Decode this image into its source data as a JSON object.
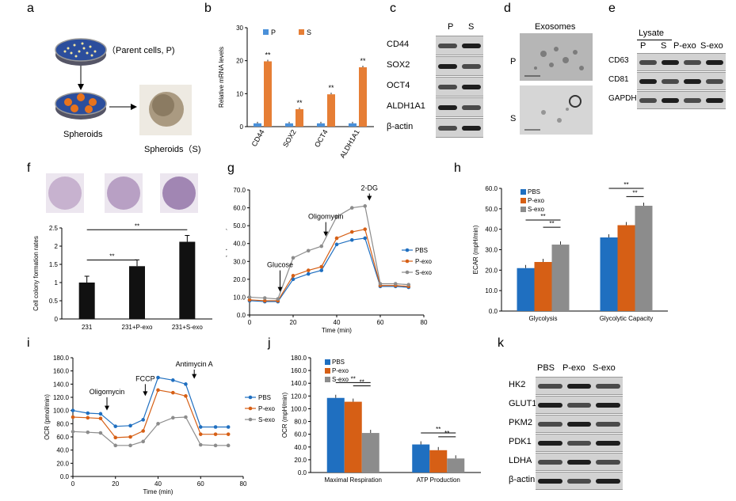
{
  "panels": {
    "a": {
      "label": "a",
      "parent_text": "（Parent cells, P)",
      "spheroids_text": "Spheroids",
      "spheroids_s_text": "Spheroids（S)"
    },
    "b": {
      "label": "b"
    },
    "c": {
      "label": "c",
      "cols": [
        "P",
        "S"
      ],
      "rows": [
        "CD44",
        "SOX2",
        "OCT4",
        "ALDH1A1",
        "β-actin"
      ]
    },
    "d": {
      "label": "d",
      "title": "Exosomes",
      "rows": [
        "P",
        "S"
      ]
    },
    "e": {
      "label": "e",
      "lysate": "Lysate",
      "cols": [
        "P",
        "S",
        "P-exo",
        "S-exo"
      ],
      "rows": [
        "CD63",
        "CD81",
        "GAPDH"
      ]
    },
    "f": {
      "label": "f"
    },
    "g": {
      "label": "g",
      "annotations": [
        "Glucose",
        "Oligomycin",
        "2-DG"
      ]
    },
    "h": {
      "label": "h"
    },
    "i": {
      "label": "i",
      "annotations": [
        "Oligomycin",
        "FCCP",
        "Antimycin A"
      ]
    },
    "j": {
      "label": "j"
    },
    "k": {
      "label": "k",
      "cols": [
        "PBS",
        "P-exo",
        "S-exo"
      ],
      "rows": [
        "HK2",
        "GLUT1",
        "PKM2",
        "PDK1",
        "LDHA",
        "β-actin"
      ]
    }
  },
  "colors": {
    "P": "#4a90d9",
    "S": "#e67e35",
    "PBS": "#1f6fc0",
    "Pexo": "#d65f15",
    "Sexo": "#8c8c8c",
    "black": "#111111"
  },
  "chart_data": [
    {
      "id": "b",
      "type": "bar",
      "categories": [
        "CD44",
        "SOX2",
        "OCT4",
        "ALDH1A1"
      ],
      "series": [
        {
          "name": "P",
          "values": [
            1,
            1,
            1,
            1
          ]
        },
        {
          "name": "S",
          "values": [
            19.8,
            5.3,
            9.8,
            18
          ]
        }
      ],
      "ylabel": "Relative mRNA levels",
      "ylim": [
        0,
        30
      ],
      "yticks": [
        "0",
        "10",
        "20",
        "30"
      ],
      "annotations": [
        "**",
        "**",
        "**",
        "**"
      ],
      "legend": "top"
    },
    {
      "id": "f",
      "type": "bar",
      "categories": [
        "231",
        "231+P-exo",
        "231+S-exo"
      ],
      "series": [
        {
          "values": [
            1.0,
            1.45,
            2.12
          ]
        }
      ],
      "ylabel": "Cell colony formation rates",
      "ylim": [
        0,
        2.5
      ],
      "yticks": [
        "0",
        "0.5",
        "1",
        "1.5",
        "2",
        "2.5"
      ],
      "annotations": [
        "**",
        "**"
      ]
    },
    {
      "id": "g",
      "type": "line",
      "x": [
        0,
        7,
        13,
        20,
        27,
        33,
        40,
        47,
        53,
        60,
        67,
        73
      ],
      "series": [
        {
          "name": "PBS",
          "values": [
            8,
            7.5,
            7.5,
            20,
            23,
            25,
            39.5,
            42,
            43,
            16,
            16,
            15.5
          ]
        },
        {
          "name": "P-exo",
          "values": [
            8.5,
            8,
            8,
            22,
            25,
            27,
            43,
            46.5,
            48,
            16.5,
            16.5,
            16
          ]
        },
        {
          "name": "S-exo",
          "values": [
            10,
            9.5,
            9,
            32,
            36,
            38.5,
            55,
            60,
            61,
            17.5,
            17.5,
            17
          ]
        }
      ],
      "xlabel": "Time (min)",
      "ylabel": "ECAR (mpH/min)",
      "xlim": [
        0,
        80
      ],
      "ylim": [
        0,
        70
      ],
      "xticks": [
        "0",
        "20",
        "40",
        "60",
        "80"
      ],
      "yticks": [
        "0.0",
        "10.0",
        "20.0",
        "30.0",
        "40.0",
        "50.0",
        "60.0",
        "70.0"
      ],
      "legend": "right"
    },
    {
      "id": "h",
      "type": "bar",
      "categories": [
        "Glycolysis",
        "Glycolytic Capacity"
      ],
      "series": [
        {
          "name": "PBS",
          "values": [
            21,
            36
          ]
        },
        {
          "name": "P-exo",
          "values": [
            24,
            42
          ]
        },
        {
          "name": "S-exo",
          "values": [
            32.5,
            51.5
          ]
        }
      ],
      "ylabel": "ECAR (mpH/min)",
      "ylim": [
        0,
        60
      ],
      "yticks": [
        "0.0",
        "10.0",
        "20.0",
        "30.0",
        "40.0",
        "50.0",
        "60.0"
      ],
      "annotations": [
        "**",
        "**",
        "**",
        "**"
      ],
      "legend": "top-left"
    },
    {
      "id": "i",
      "type": "line",
      "x": [
        0,
        7,
        13,
        20,
        27,
        33,
        40,
        47,
        53,
        60,
        67,
        73
      ],
      "series": [
        {
          "name": "PBS",
          "values": [
            100,
            96,
            95,
            76,
            77,
            86,
            150,
            146,
            140,
            75,
            75,
            75
          ]
        },
        {
          "name": "P-exo",
          "values": [
            90,
            89,
            88,
            59,
            60,
            69,
            131,
            127,
            122,
            64,
            64,
            64
          ]
        },
        {
          "name": "S-exo",
          "values": [
            68,
            67,
            66,
            47,
            47,
            53,
            80,
            89,
            90,
            48,
            47,
            47
          ]
        }
      ],
      "xlabel": "Time (min)",
      "ylabel": "OCR (pmol/min)",
      "xlim": [
        0,
        80
      ],
      "ylim": [
        0,
        180
      ],
      "xticks": [
        "0",
        "20",
        "40",
        "60",
        "80"
      ],
      "yticks": [
        "0.0",
        "20.0",
        "40.0",
        "60.0",
        "80.0",
        "100.0",
        "120.0",
        "140.0",
        "160.0",
        "180.0"
      ],
      "legend": "right"
    },
    {
      "id": "j",
      "type": "bar",
      "categories": [
        "Maximal Respiration",
        "ATP Production"
      ],
      "series": [
        {
          "name": "PBS",
          "values": [
            117,
            44
          ]
        },
        {
          "name": "P-exo",
          "values": [
            111,
            35
          ]
        },
        {
          "name": "S-exo",
          "values": [
            62,
            22
          ]
        }
      ],
      "ylabel": "OCR (mpH/min)",
      "ylim": [
        0,
        180
      ],
      "yticks": [
        "0.0",
        "20.0",
        "40.0",
        "60.0",
        "80.0",
        "100.0",
        "120.0",
        "140.0",
        "160.0",
        "180.0"
      ],
      "annotations": [
        "**",
        "**",
        "**",
        "**"
      ],
      "legend": "top-left"
    }
  ]
}
